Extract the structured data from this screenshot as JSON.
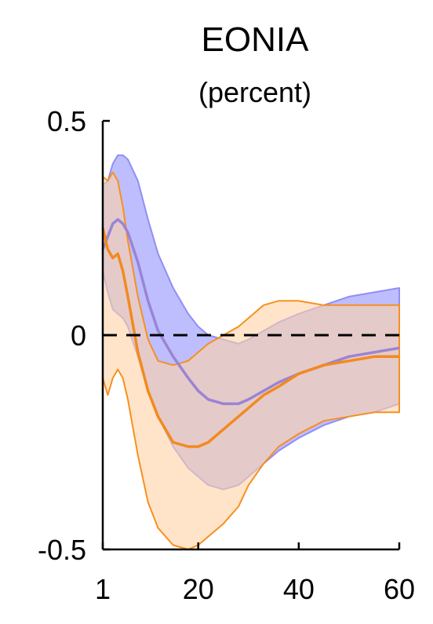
{
  "chart_data": {
    "type": "line",
    "title": "EONIA",
    "subtitle": "(percent)",
    "xlabel": "",
    "ylabel": "",
    "xlim": [
      1,
      60
    ],
    "ylim": [
      -0.5,
      0.5
    ],
    "x_ticks": [
      1,
      20,
      40,
      60
    ],
    "y_ticks": [
      {
        "value": 0.5,
        "label": "0.5"
      },
      {
        "value": 0,
        "label": "0"
      },
      {
        "value": -0.5,
        "label": "-0.5"
      }
    ],
    "grid": false,
    "zero_line": {
      "y": 0,
      "style": "dashed",
      "color": "#000000"
    },
    "x": [
      1,
      2,
      3,
      4,
      5,
      6,
      8,
      10,
      12,
      15,
      18,
      20,
      22,
      25,
      28,
      30,
      33,
      36,
      40,
      45,
      50,
      55,
      60
    ],
    "bands": [
      {
        "color": "#b3b3ff",
        "edge_color": "#8f8ff5",
        "upper": [
          0.35,
          0.36,
          0.4,
          0.42,
          0.42,
          0.41,
          0.36,
          0.27,
          0.19,
          0.11,
          0.05,
          0.02,
          0.0,
          -0.01,
          -0.02,
          -0.01,
          0.01,
          0.03,
          0.05,
          0.07,
          0.09,
          0.1,
          0.11
        ],
        "lower": [
          0.15,
          0.1,
          0.06,
          0.05,
          0.04,
          0.02,
          -0.05,
          -0.13,
          -0.19,
          -0.26,
          -0.31,
          -0.33,
          -0.35,
          -0.36,
          -0.35,
          -0.33,
          -0.3,
          -0.27,
          -0.24,
          -0.21,
          -0.19,
          -0.18,
          -0.16
        ]
      },
      {
        "color": "#ffd2a6",
        "edge_color": "#f7901e",
        "upper": [
          0.37,
          0.36,
          0.38,
          0.36,
          0.3,
          0.22,
          0.09,
          -0.01,
          -0.06,
          -0.07,
          -0.06,
          -0.04,
          -0.02,
          0.0,
          0.02,
          0.04,
          0.07,
          0.08,
          0.08,
          0.07,
          0.07,
          0.07,
          0.07
        ],
        "lower": [
          -0.1,
          -0.14,
          -0.1,
          -0.08,
          -0.1,
          -0.15,
          -0.28,
          -0.39,
          -0.45,
          -0.49,
          -0.5,
          -0.49,
          -0.47,
          -0.44,
          -0.4,
          -0.35,
          -0.3,
          -0.26,
          -0.23,
          -0.2,
          -0.19,
          -0.18,
          -0.18
        ]
      }
    ],
    "series": [
      {
        "color": "#9b84d3",
        "values": [
          0.2,
          0.23,
          0.26,
          0.27,
          0.26,
          0.24,
          0.17,
          0.08,
          0.01,
          -0.05,
          -0.1,
          -0.13,
          -0.15,
          -0.16,
          -0.16,
          -0.15,
          -0.13,
          -0.11,
          -0.09,
          -0.07,
          -0.05,
          -0.04,
          -0.03
        ]
      },
      {
        "color": "#f28a1e",
        "values": [
          0.25,
          0.2,
          0.18,
          0.19,
          0.15,
          0.09,
          -0.04,
          -0.13,
          -0.19,
          -0.25,
          -0.26,
          -0.26,
          -0.25,
          -0.22,
          -0.19,
          -0.17,
          -0.14,
          -0.12,
          -0.09,
          -0.07,
          -0.06,
          -0.05,
          -0.05
        ]
      }
    ]
  }
}
